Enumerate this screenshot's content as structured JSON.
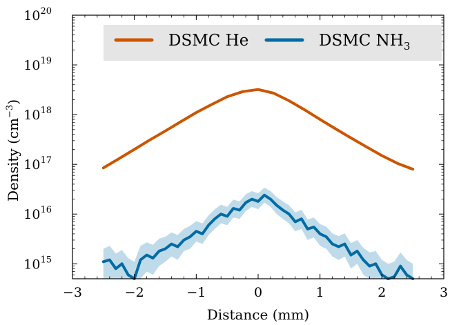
{
  "chart_data": {
    "type": "line",
    "title": "",
    "xlabel": "Distance (mm)",
    "ylabel": "Density (cm",
    "ylabel_sup": "−3",
    "ylabel_close": ")",
    "xlim": [
      -3,
      3
    ],
    "ylim": [
      500000000000000.0,
      1e+20
    ],
    "yscale": "log",
    "xticks": [
      -3,
      -2,
      -1,
      0,
      1,
      2,
      3
    ],
    "xtick_labels": [
      "−3",
      "−2",
      "−1",
      "0",
      "1",
      "2",
      "3"
    ],
    "yticks": [
      {
        "value": 1000000000000000.0,
        "base": "10",
        "exp": "15"
      },
      {
        "value": 1e+16,
        "base": "10",
        "exp": "16"
      },
      {
        "value": 1e+17,
        "base": "10",
        "exp": "17"
      },
      {
        "value": 1e+18,
        "base": "10",
        "exp": "18"
      },
      {
        "value": 1e+19,
        "base": "10",
        "exp": "19"
      },
      {
        "value": 1e+20,
        "base": "10",
        "exp": "20"
      }
    ],
    "grid": false,
    "legend_position": "top-right",
    "series": [
      {
        "name": "DSMC He",
        "legend_label": "DSMC He",
        "legend_sub": "",
        "color": "#cc5500",
        "band_color": "#e8a27a",
        "x": [
          -2.5,
          -2.25,
          -2.0,
          -1.75,
          -1.5,
          -1.25,
          -1.0,
          -0.75,
          -0.5,
          -0.25,
          0.0,
          0.25,
          0.5,
          0.75,
          1.0,
          1.25,
          1.5,
          1.75,
          2.0,
          2.25,
          2.5
        ],
        "y": [
          8.5e+16,
          1.3e+17,
          2e+17,
          3.1e+17,
          4.7e+17,
          7.2e+17,
          1.1e+18,
          1.6e+18,
          2.3e+18,
          2.9e+18,
          3.2e+18,
          2.7e+18,
          1.9e+18,
          1.25e+18,
          8e+17,
          5.2e+17,
          3.4e+17,
          2.25e+17,
          1.5e+17,
          1.05e+17,
          8e+16
        ],
        "y_low": [
          8e+16,
          1.24e+17,
          1.92e+17,
          3e+17,
          4.55e+17,
          7e+17,
          1.07e+18,
          1.56e+18,
          2.24e+18,
          2.82e+18,
          3.1e+18,
          2.62e+18,
          1.84e+18,
          1.21e+18,
          7.8e+17,
          5.05e+17,
          3.3e+17,
          2.18e+17,
          1.45e+17,
          1e+17,
          7.5e+16
        ],
        "y_high": [
          9e+16,
          1.36e+17,
          2.08e+17,
          3.2e+17,
          4.85e+17,
          7.4e+17,
          1.13e+18,
          1.64e+18,
          2.36e+18,
          2.98e+18,
          3.3e+18,
          2.78e+18,
          1.96e+18,
          1.29e+18,
          8.2e+17,
          5.35e+17,
          3.5e+17,
          2.32e+17,
          1.55e+17,
          1.1e+17,
          8.5e+16
        ]
      },
      {
        "name": "DSMC NH3",
        "legend_label": "DSMC NH",
        "legend_sub": "3",
        "color": "#006ba4",
        "band_color": "#a9cfe3",
        "x": [
          -2.5,
          -2.4,
          -2.3,
          -2.2,
          -2.1,
          -2.0,
          -1.9,
          -1.8,
          -1.7,
          -1.6,
          -1.5,
          -1.4,
          -1.3,
          -1.2,
          -1.1,
          -1.0,
          -0.9,
          -0.8,
          -0.7,
          -0.6,
          -0.5,
          -0.4,
          -0.3,
          -0.2,
          -0.1,
          0.0,
          0.1,
          0.2,
          0.3,
          0.4,
          0.5,
          0.6,
          0.7,
          0.8,
          0.9,
          1.0,
          1.1,
          1.2,
          1.3,
          1.4,
          1.5,
          1.6,
          1.7,
          1.8,
          1.9,
          2.0,
          2.1,
          2.2,
          2.3,
          2.4,
          2.5
        ],
        "y": [
          1100000000000000.0,
          1200000000000000.0,
          800000000000000.0,
          1000000000000000.0,
          600000000000000.0,
          500000000000000.0,
          1200000000000000.0,
          1500000000000000.0,
          1300000000000000.0,
          1800000000000000.0,
          2000000000000000.0,
          2500000000000000.0,
          2200000000000000.0,
          3000000000000000.0,
          3500000000000000.0,
          4500000000000000.0,
          4000000000000000.0,
          6000000000000000.0,
          8000000000000000.0,
          1e+16,
          9000000000000000.0,
          1.3e+16,
          1.2e+16,
          1.7e+16,
          2e+16,
          1.8e+16,
          2.4e+16,
          2e+16,
          1.5e+16,
          1.2e+16,
          1e+16,
          7000000000000000.0,
          8000000000000000.0,
          5000000000000000.0,
          5500000000000000.0,
          4000000000000000.0,
          3500000000000000.0,
          2500000000000000.0,
          2200000000000000.0,
          2500000000000000.0,
          1500000000000000.0,
          1800000000000000.0,
          1200000000000000.0,
          900000000000000.0,
          1000000000000000.0,
          600000000000000.0,
          500000000000000.0,
          550000000000000.0,
          900000000000000.0,
          600000000000000.0,
          500000000000000.0
        ],
        "y_low": [
          500000000000000.0,
          500000000000000.0,
          500000000000000.0,
          500000000000000.0,
          500000000000000.0,
          500000000000000.0,
          500000000000000.0,
          700000000000000.0,
          600000000000000.0,
          900000000000000.0,
          1100000000000000.0,
          1400000000000000.0,
          1200000000000000.0,
          1800000000000000.0,
          2000000000000000.0,
          2800000000000000.0,
          2500000000000000.0,
          3800000000000000.0,
          5000000000000000.0,
          6500000000000000.0,
          6000000000000000.0,
          8500000000000000.0,
          8000000000000000.0,
          1.15e+16,
          1.4e+16,
          1.25e+16,
          1.7e+16,
          1.4e+16,
          1e+16,
          8000000000000000.0,
          6500000000000000.0,
          4500000000000000.0,
          5000000000000000.0,
          3000000000000000.0,
          3400000000000000.0,
          2300000000000000.0,
          2000000000000000.0,
          1400000000000000.0,
          1200000000000000.0,
          1400000000000000.0,
          800000000000000.0,
          1000000000000000.0,
          600000000000000.0,
          500000000000000.0,
          500000000000000.0,
          500000000000000.0,
          500000000000000.0,
          500000000000000.0,
          500000000000000.0,
          500000000000000.0,
          500000000000000.0
        ],
        "y_high": [
          2000000000000000.0,
          2300000000000000.0,
          1600000000000000.0,
          1900000000000000.0,
          1300000000000000.0,
          1100000000000000.0,
          2300000000000000.0,
          2700000000000000.0,
          2400000000000000.0,
          3200000000000000.0,
          3500000000000000.0,
          4300000000000000.0,
          3800000000000000.0,
          5000000000000000.0,
          5800000000000000.0,
          7200000000000000.0,
          6500000000000000.0,
          9500000000000000.0,
          1.25e+16,
          1.55e+16,
          1.4e+16,
          1.95e+16,
          1.8e+16,
          2.5e+16,
          2.9e+16,
          2.6e+16,
          3.4e+16,
          2.9e+16,
          2.2e+16,
          1.8e+16,
          1.5e+16,
          1.08e+16,
          1.22e+16,
          7800000000000000.0,
          8500000000000000.0,
          6300000000000000.0,
          5600000000000000.0,
          4100000000000000.0,
          3600000000000000.0,
          4100000000000000.0,
          2600000000000000.0,
          3000000000000000.0,
          2100000000000000.0,
          1700000000000000.0,
          1800000000000000.0,
          1200000000000000.0,
          1000000000000000.0,
          1100000000000000.0,
          1700000000000000.0,
          1200000000000000.0,
          1000000000000000.0
        ]
      }
    ]
  }
}
